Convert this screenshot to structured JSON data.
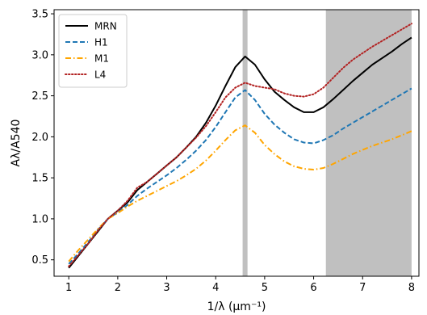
{
  "chart_data": {
    "type": "line",
    "title": "",
    "xlabel": "1/λ (μm⁻¹)",
    "ylabel": "Aλ/A540",
    "xlim": [
      0.7,
      8.15
    ],
    "ylim": [
      0.3,
      3.55
    ],
    "xticks": [
      1,
      2,
      3,
      4,
      5,
      6,
      7,
      8
    ],
    "yticks": [
      0.5,
      1.0,
      1.5,
      2.0,
      2.5,
      3.0,
      3.5
    ],
    "xtick_labels": [
      "1",
      "2",
      "3",
      "4",
      "5",
      "6",
      "7",
      "8"
    ],
    "ytick_labels": [
      "0.5",
      "1.0",
      "1.5",
      "2.0",
      "2.5",
      "3.0",
      "3.5"
    ],
    "grid": false,
    "legend": "top-left",
    "shaded_regions": [
      {
        "x0": 4.55,
        "x1": 4.65,
        "color": "#c0c0c0"
      },
      {
        "x0": 6.25,
        "x1": 8.0,
        "color": "#c0c0c0"
      }
    ],
    "series": [
      {
        "name": "MRN",
        "color": "#000000",
        "dash": "solid",
        "points": [
          [
            1.0,
            0.4
          ],
          [
            1.2,
            0.55
          ],
          [
            1.4,
            0.7
          ],
          [
            1.6,
            0.85
          ],
          [
            1.8,
            1.0
          ],
          [
            2.0,
            1.1
          ],
          [
            2.2,
            1.2
          ],
          [
            2.4,
            1.35
          ],
          [
            2.6,
            1.45
          ],
          [
            2.8,
            1.55
          ],
          [
            3.0,
            1.65
          ],
          [
            3.2,
            1.75
          ],
          [
            3.4,
            1.87
          ],
          [
            3.6,
            2.0
          ],
          [
            3.8,
            2.17
          ],
          [
            4.0,
            2.38
          ],
          [
            4.2,
            2.62
          ],
          [
            4.4,
            2.85
          ],
          [
            4.6,
            2.98
          ],
          [
            4.8,
            2.88
          ],
          [
            5.0,
            2.7
          ],
          [
            5.2,
            2.55
          ],
          [
            5.4,
            2.45
          ],
          [
            5.6,
            2.36
          ],
          [
            5.8,
            2.3
          ],
          [
            6.0,
            2.3
          ],
          [
            6.2,
            2.36
          ],
          [
            6.4,
            2.46
          ],
          [
            6.6,
            2.57
          ],
          [
            6.8,
            2.68
          ],
          [
            7.0,
            2.78
          ],
          [
            7.2,
            2.88
          ],
          [
            7.4,
            2.96
          ],
          [
            7.6,
            3.04
          ],
          [
            7.8,
            3.13
          ],
          [
            8.0,
            3.21
          ]
        ]
      },
      {
        "name": "H1",
        "color": "#1f77b4",
        "dash": "dashed",
        "points": [
          [
            1.0,
            0.45
          ],
          [
            1.2,
            0.58
          ],
          [
            1.4,
            0.72
          ],
          [
            1.6,
            0.87
          ],
          [
            1.8,
            1.0
          ],
          [
            2.0,
            1.08
          ],
          [
            2.2,
            1.17
          ],
          [
            2.4,
            1.28
          ],
          [
            2.6,
            1.37
          ],
          [
            2.8,
            1.45
          ],
          [
            3.0,
            1.53
          ],
          [
            3.2,
            1.62
          ],
          [
            3.4,
            1.72
          ],
          [
            3.6,
            1.83
          ],
          [
            3.8,
            1.96
          ],
          [
            4.0,
            2.12
          ],
          [
            4.2,
            2.3
          ],
          [
            4.4,
            2.48
          ],
          [
            4.6,
            2.57
          ],
          [
            4.8,
            2.45
          ],
          [
            5.0,
            2.28
          ],
          [
            5.2,
            2.15
          ],
          [
            5.4,
            2.05
          ],
          [
            5.6,
            1.97
          ],
          [
            5.8,
            1.93
          ],
          [
            6.0,
            1.92
          ],
          [
            6.2,
            1.96
          ],
          [
            6.4,
            2.02
          ],
          [
            6.6,
            2.1
          ],
          [
            6.8,
            2.17
          ],
          [
            7.0,
            2.24
          ],
          [
            7.2,
            2.31
          ],
          [
            7.4,
            2.38
          ],
          [
            7.6,
            2.45
          ],
          [
            7.8,
            2.52
          ],
          [
            8.0,
            2.59
          ]
        ]
      },
      {
        "name": "M1",
        "color": "#ffa500",
        "dash": "dashdot",
        "points": [
          [
            1.0,
            0.48
          ],
          [
            1.2,
            0.62
          ],
          [
            1.4,
            0.75
          ],
          [
            1.6,
            0.88
          ],
          [
            1.8,
            1.0
          ],
          [
            2.0,
            1.07
          ],
          [
            2.2,
            1.15
          ],
          [
            2.4,
            1.22
          ],
          [
            2.6,
            1.28
          ],
          [
            2.8,
            1.34
          ],
          [
            3.0,
            1.4
          ],
          [
            3.2,
            1.46
          ],
          [
            3.4,
            1.53
          ],
          [
            3.6,
            1.61
          ],
          [
            3.8,
            1.71
          ],
          [
            4.0,
            1.83
          ],
          [
            4.2,
            1.96
          ],
          [
            4.4,
            2.08
          ],
          [
            4.6,
            2.14
          ],
          [
            4.8,
            2.05
          ],
          [
            5.0,
            1.9
          ],
          [
            5.2,
            1.79
          ],
          [
            5.4,
            1.7
          ],
          [
            5.6,
            1.64
          ],
          [
            5.8,
            1.61
          ],
          [
            6.0,
            1.6
          ],
          [
            6.2,
            1.62
          ],
          [
            6.4,
            1.67
          ],
          [
            6.6,
            1.73
          ],
          [
            6.8,
            1.79
          ],
          [
            7.0,
            1.84
          ],
          [
            7.2,
            1.89
          ],
          [
            7.4,
            1.93
          ],
          [
            7.6,
            1.97
          ],
          [
            7.8,
            2.02
          ],
          [
            8.0,
            2.07
          ]
        ]
      },
      {
        "name": "L4",
        "color": "#b22222",
        "dash": "dotted",
        "points": [
          [
            1.0,
            0.42
          ],
          [
            1.2,
            0.56
          ],
          [
            1.4,
            0.7
          ],
          [
            1.6,
            0.86
          ],
          [
            1.8,
            1.0
          ],
          [
            2.0,
            1.1
          ],
          [
            2.2,
            1.22
          ],
          [
            2.4,
            1.38
          ],
          [
            2.6,
            1.45
          ],
          [
            2.8,
            1.55
          ],
          [
            3.0,
            1.65
          ],
          [
            3.2,
            1.75
          ],
          [
            3.4,
            1.87
          ],
          [
            3.6,
            1.99
          ],
          [
            3.8,
            2.13
          ],
          [
            4.0,
            2.3
          ],
          [
            4.2,
            2.48
          ],
          [
            4.4,
            2.6
          ],
          [
            4.6,
            2.66
          ],
          [
            4.8,
            2.62
          ],
          [
            5.0,
            2.6
          ],
          [
            5.2,
            2.58
          ],
          [
            5.4,
            2.53
          ],
          [
            5.6,
            2.5
          ],
          [
            5.8,
            2.49
          ],
          [
            6.0,
            2.52
          ],
          [
            6.2,
            2.6
          ],
          [
            6.4,
            2.72
          ],
          [
            6.6,
            2.84
          ],
          [
            6.8,
            2.94
          ],
          [
            7.0,
            3.02
          ],
          [
            7.2,
            3.1
          ],
          [
            7.4,
            3.17
          ],
          [
            7.6,
            3.24
          ],
          [
            7.8,
            3.31
          ],
          [
            8.0,
            3.38
          ]
        ]
      }
    ]
  }
}
